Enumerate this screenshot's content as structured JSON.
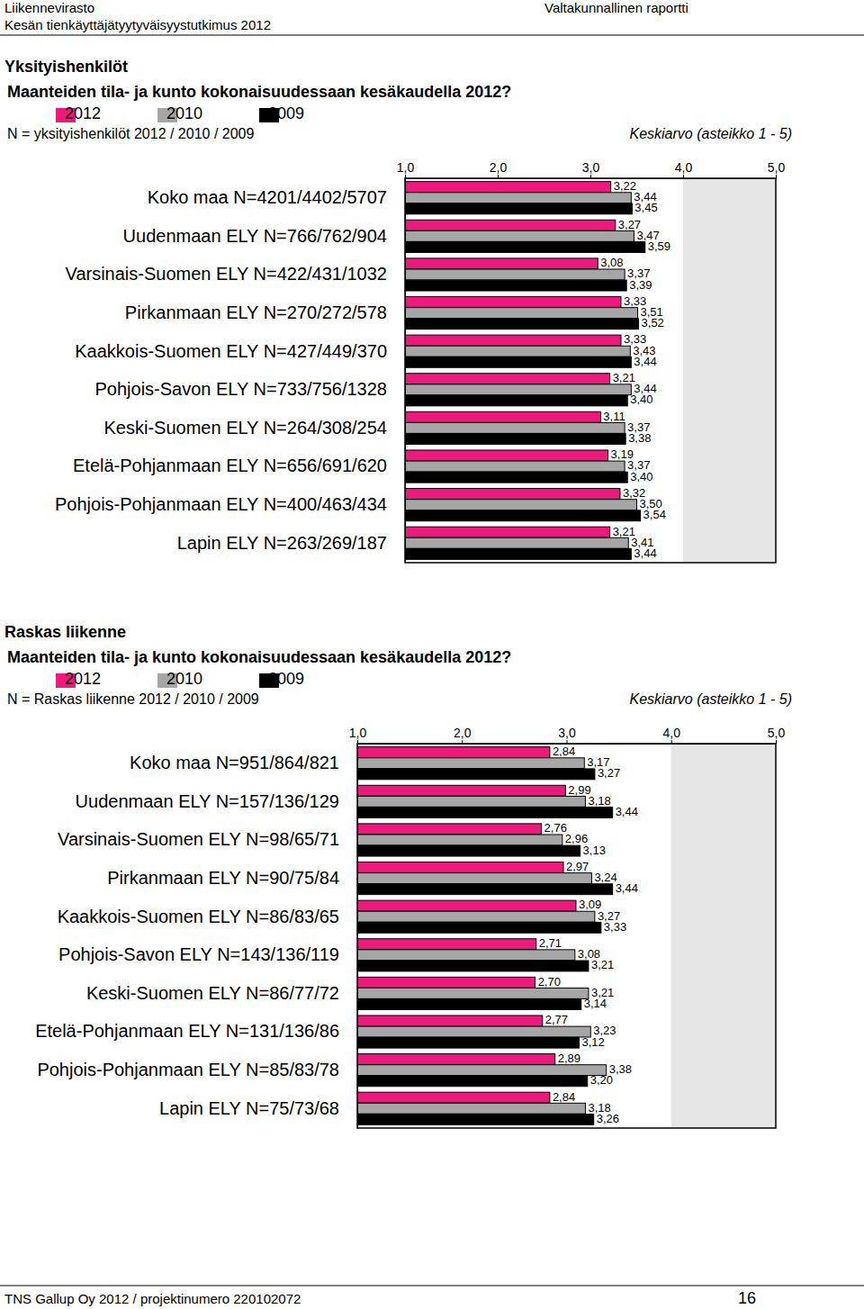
{
  "page": {
    "header_org": "Liikennevirasto",
    "header_study": "Kesän tienkäyttäjätyytyväisyystutkimus 2012",
    "header_report": "Valtakunnallinen raportti",
    "footer_left": "TNS Gallup Oy 2012 / projektinumero 220102072",
    "footer_page": "16"
  },
  "chart_data": [
    {
      "type": "bar",
      "orientation": "horizontal",
      "title": "Yksityishenkilöt",
      "subtitle": "Maanteiden tila- ja kunto kokonaisuudessaan kesäkaudella 2012?",
      "annotations": [
        "N = yksityishenkilöt 2012 / 2010 / 2009"
      ],
      "x_label": "Keskiarvo (asteikko 1 - 5)",
      "categories": [
        "Koko maa N=4201/4402/5707",
        "Uudenmaan ELY N=766/762/904",
        "Varsinais-Suomen ELY N=422/431/1032",
        "Pirkanmaan ELY N=270/272/578",
        "Kaakkois-Suomen ELY N=427/449/370",
        "Pohjois-Savon ELY N=733/756/1328",
        "Keski-Suomen ELY N=264/308/254",
        "Etelä-Pohjanmaan ELY N=656/691/620",
        "Pohjois-Pohjanmaan ELY N=400/463/434",
        "Lapin ELY N=263/269/187"
      ],
      "series": [
        {
          "name": "2012",
          "color": "#ec1a7c",
          "values": [
            3.22,
            3.27,
            3.08,
            3.33,
            3.33,
            3.21,
            3.11,
            3.19,
            3.32,
            3.21
          ],
          "value_labels": [
            "3,22",
            "3,27",
            "3,08",
            "3,33",
            "3,33",
            "3,21",
            "3,11",
            "3,19",
            "3,32",
            "3,21"
          ]
        },
        {
          "name": "2010",
          "color": "#a6a6a6",
          "values": [
            3.44,
            3.47,
            3.37,
            3.51,
            3.43,
            3.44,
            3.37,
            3.37,
            3.5,
            3.41
          ],
          "value_labels": [
            "3,44",
            "3,47",
            "3,37",
            "3,51",
            "3,43",
            "3,44",
            "3,37",
            "3,37",
            "3,50",
            "3,41"
          ]
        },
        {
          "name": "2009",
          "color": "#000000",
          "values": [
            3.45,
            3.59,
            3.39,
            3.52,
            3.44,
            3.4,
            3.38,
            3.4,
            3.54,
            3.44
          ],
          "value_labels": [
            "3,45",
            "3,59",
            "3,39",
            "3,52",
            "3,44",
            "3,40",
            "3,38",
            "3,40",
            "3,54",
            "3,44"
          ]
        }
      ],
      "xlim": [
        1,
        5
      ],
      "xticks": [
        {
          "value": 1,
          "label": "1,0"
        },
        {
          "value": 2,
          "label": "2,0"
        },
        {
          "value": 3,
          "label": "3,0"
        },
        {
          "value": 4,
          "label": "4,0"
        },
        {
          "value": 5,
          "label": "5,0"
        }
      ],
      "grid": false,
      "legend": "top",
      "data_labels": true,
      "tick_labels": "x"
    },
    {
      "type": "bar",
      "orientation": "horizontal",
      "title": "Raskas liikenne",
      "subtitle": "Maanteiden tila- ja kunto kokonaisuudessaan kesäkaudella 2012?",
      "annotations": [
        "N = Raskas liikenne 2012 / 2010 / 2009"
      ],
      "x_label": "Keskiarvo (asteikko 1 - 5)",
      "categories": [
        "Koko maa N=951/864/821",
        "Uudenmaan ELY N=157/136/129",
        "Varsinais-Suomen ELY N=98/65/71",
        "Pirkanmaan ELY N=90/75/84",
        "Kaakkois-Suomen ELY N=86/83/65",
        "Pohjois-Savon ELY N=143/136/119",
        "Keski-Suomen ELY N=86/77/72",
        "Etelä-Pohjanmaan ELY N=131/136/86",
        "Pohjois-Pohjanmaan ELY N=85/83/78",
        "Lapin ELY N=75/73/68"
      ],
      "series": [
        {
          "name": "2012",
          "color": "#ec1a7c",
          "values": [
            2.84,
            2.99,
            2.76,
            2.97,
            3.09,
            2.71,
            2.7,
            2.77,
            2.89,
            2.84
          ],
          "value_labels": [
            "2,84",
            "2,99",
            "2,76",
            "2,97",
            "3,09",
            "2,71",
            "2,70",
            "2,77",
            "2,89",
            "2,84"
          ]
        },
        {
          "name": "2010",
          "color": "#a6a6a6",
          "values": [
            3.17,
            3.18,
            2.96,
            3.24,
            3.27,
            3.08,
            3.21,
            3.23,
            3.38,
            3.18
          ],
          "value_labels": [
            "3,17",
            "3,18",
            "2,96",
            "3,24",
            "3,27",
            "3,08",
            "3,21",
            "3,23",
            "3,38",
            "3,18"
          ]
        },
        {
          "name": "2009",
          "color": "#000000",
          "values": [
            3.27,
            3.44,
            3.13,
            3.44,
            3.33,
            3.21,
            3.14,
            3.12,
            3.2,
            3.26
          ],
          "value_labels": [
            "3,27",
            "3,44",
            "3,13",
            "3,44",
            "3,33",
            "3,21",
            "3,14",
            "3,12",
            "3,20",
            "3,26"
          ]
        }
      ],
      "xlim": [
        1,
        5
      ],
      "xticks": [
        {
          "value": 1,
          "label": "1,0"
        },
        {
          "value": 2,
          "label": "2,0"
        },
        {
          "value": 3,
          "label": "3,0"
        },
        {
          "value": 4,
          "label": "4,0"
        },
        {
          "value": 5,
          "label": "5,0"
        }
      ],
      "grid": false,
      "legend": "top",
      "data_labels": true,
      "tick_labels": "x"
    }
  ]
}
